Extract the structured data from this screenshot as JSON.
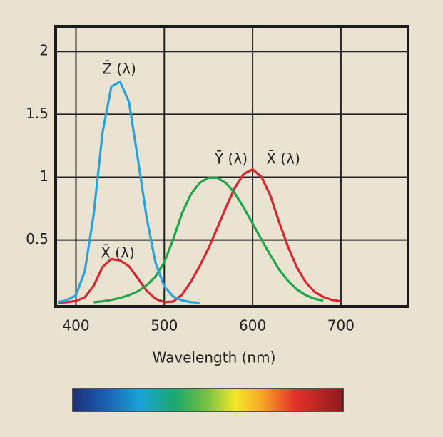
{
  "chart_data": {
    "type": "line",
    "x": [
      380,
      390,
      400,
      410,
      420,
      430,
      440,
      450,
      460,
      470,
      480,
      490,
      500,
      510,
      520,
      530,
      540,
      550,
      560,
      570,
      580,
      590,
      600,
      610,
      620,
      630,
      640,
      650,
      660,
      670,
      680,
      690,
      700
    ],
    "series": [
      {
        "name": "X̄ (λ)",
        "color": "#d8262f",
        "values": [
          0.0014,
          0.0042,
          0.0143,
          0.0435,
          0.1344,
          0.2839,
          0.3483,
          0.3362,
          0.2908,
          0.1954,
          0.0956,
          0.032,
          0.0049,
          0.0093,
          0.0633,
          0.1655,
          0.2904,
          0.4334,
          0.5945,
          0.7621,
          0.9163,
          1.0263,
          1.0622,
          1.0026,
          0.8544,
          0.6424,
          0.4479,
          0.2835,
          0.1649,
          0.0874,
          0.0468,
          0.0227,
          0.0114
        ]
      },
      {
        "name": "Ȳ (λ)",
        "color": "#1fa64b",
        "values": [
          null,
          null,
          null,
          null,
          0.004,
          0.0116,
          0.023,
          0.038,
          0.06,
          0.091,
          0.139,
          0.208,
          0.323,
          0.503,
          0.71,
          0.862,
          0.954,
          0.995,
          0.995,
          0.952,
          0.87,
          0.757,
          0.631,
          0.503,
          0.381,
          0.265,
          0.175,
          0.107,
          0.061,
          0.032,
          0.017,
          null,
          null
        ]
      },
      {
        "name": "Z̄ (λ)",
        "color": "#2aa3dc",
        "values": [
          0.0065,
          0.0201,
          0.06,
          0.25,
          0.7,
          1.35,
          1.72,
          1.76,
          1.6,
          1.15,
          0.68,
          0.32,
          0.13,
          0.05,
          0.02,
          0.005,
          0.0,
          null,
          null,
          null,
          null,
          null,
          null,
          null,
          null,
          null,
          null,
          null,
          null,
          null,
          null,
          null,
          null
        ]
      }
    ],
    "annotations": [
      "Z̄ (λ)",
      "X̄ (λ)",
      "Ȳ (λ)",
      "X̄ (λ)"
    ],
    "xlabel": "Wavelength (nm)",
    "xlim": [
      377,
      776
    ],
    "xticks": [
      400,
      500,
      600,
      700
    ],
    "ylim": [
      -0.03,
      2.2
    ],
    "yticks": [
      0.5,
      1,
      1.5,
      2
    ],
    "grid": true
  }
}
